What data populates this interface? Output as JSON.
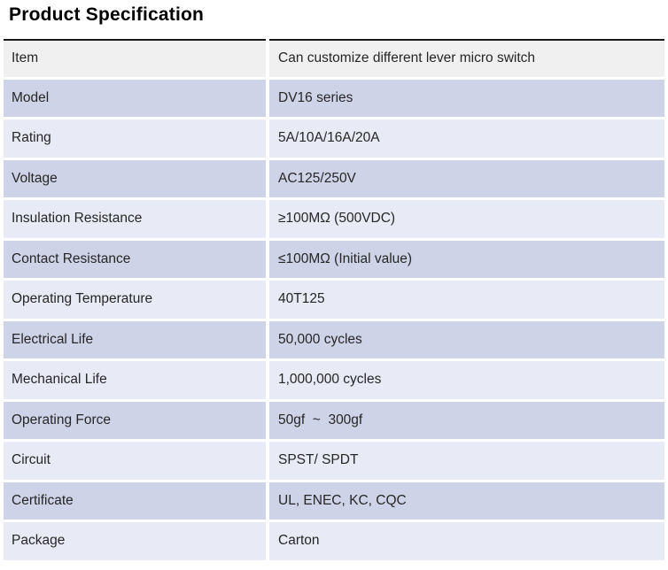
{
  "page_title": "Product Specification",
  "colors": {
    "row_item_bg": "#f0f0f0",
    "row_alt_dark": "#cfd3e8",
    "row_alt_light": "#e8ebf6",
    "top_border": "#1a1a1a",
    "text": "#262626",
    "title_text": "#000000",
    "page_background": "#ffffff"
  },
  "table": {
    "rows": [
      {
        "label": "Item",
        "value": "Can customize different lever micro switch"
      },
      {
        "label": "Model",
        "value": "DV16 series"
      },
      {
        "label": "Rating",
        "value": "5A/10A/16A/20A"
      },
      {
        "label": "Voltage",
        "value": "AC125/250V"
      },
      {
        "label": "Insulation Resistance",
        "value": "≥100MΩ (500VDC)"
      },
      {
        "label": "Contact Resistance",
        "value": "≤100MΩ (Initial value)"
      },
      {
        "label": "Operating Temperature",
        "value": "40T125"
      },
      {
        "label": "Electrical Life",
        "value": "50,000 cycles"
      },
      {
        "label": "Mechanical Life",
        "value": "1,000,000 cycles"
      },
      {
        "label": "Operating Force",
        "value": "50gf  ~  300gf"
      },
      {
        "label": "Circuit",
        "value": "SPST/ SPDT"
      },
      {
        "label": "Certificate",
        "value": "UL, ENEC, KC, CQC"
      },
      {
        "label": "Package",
        "value": "Carton"
      }
    ]
  }
}
